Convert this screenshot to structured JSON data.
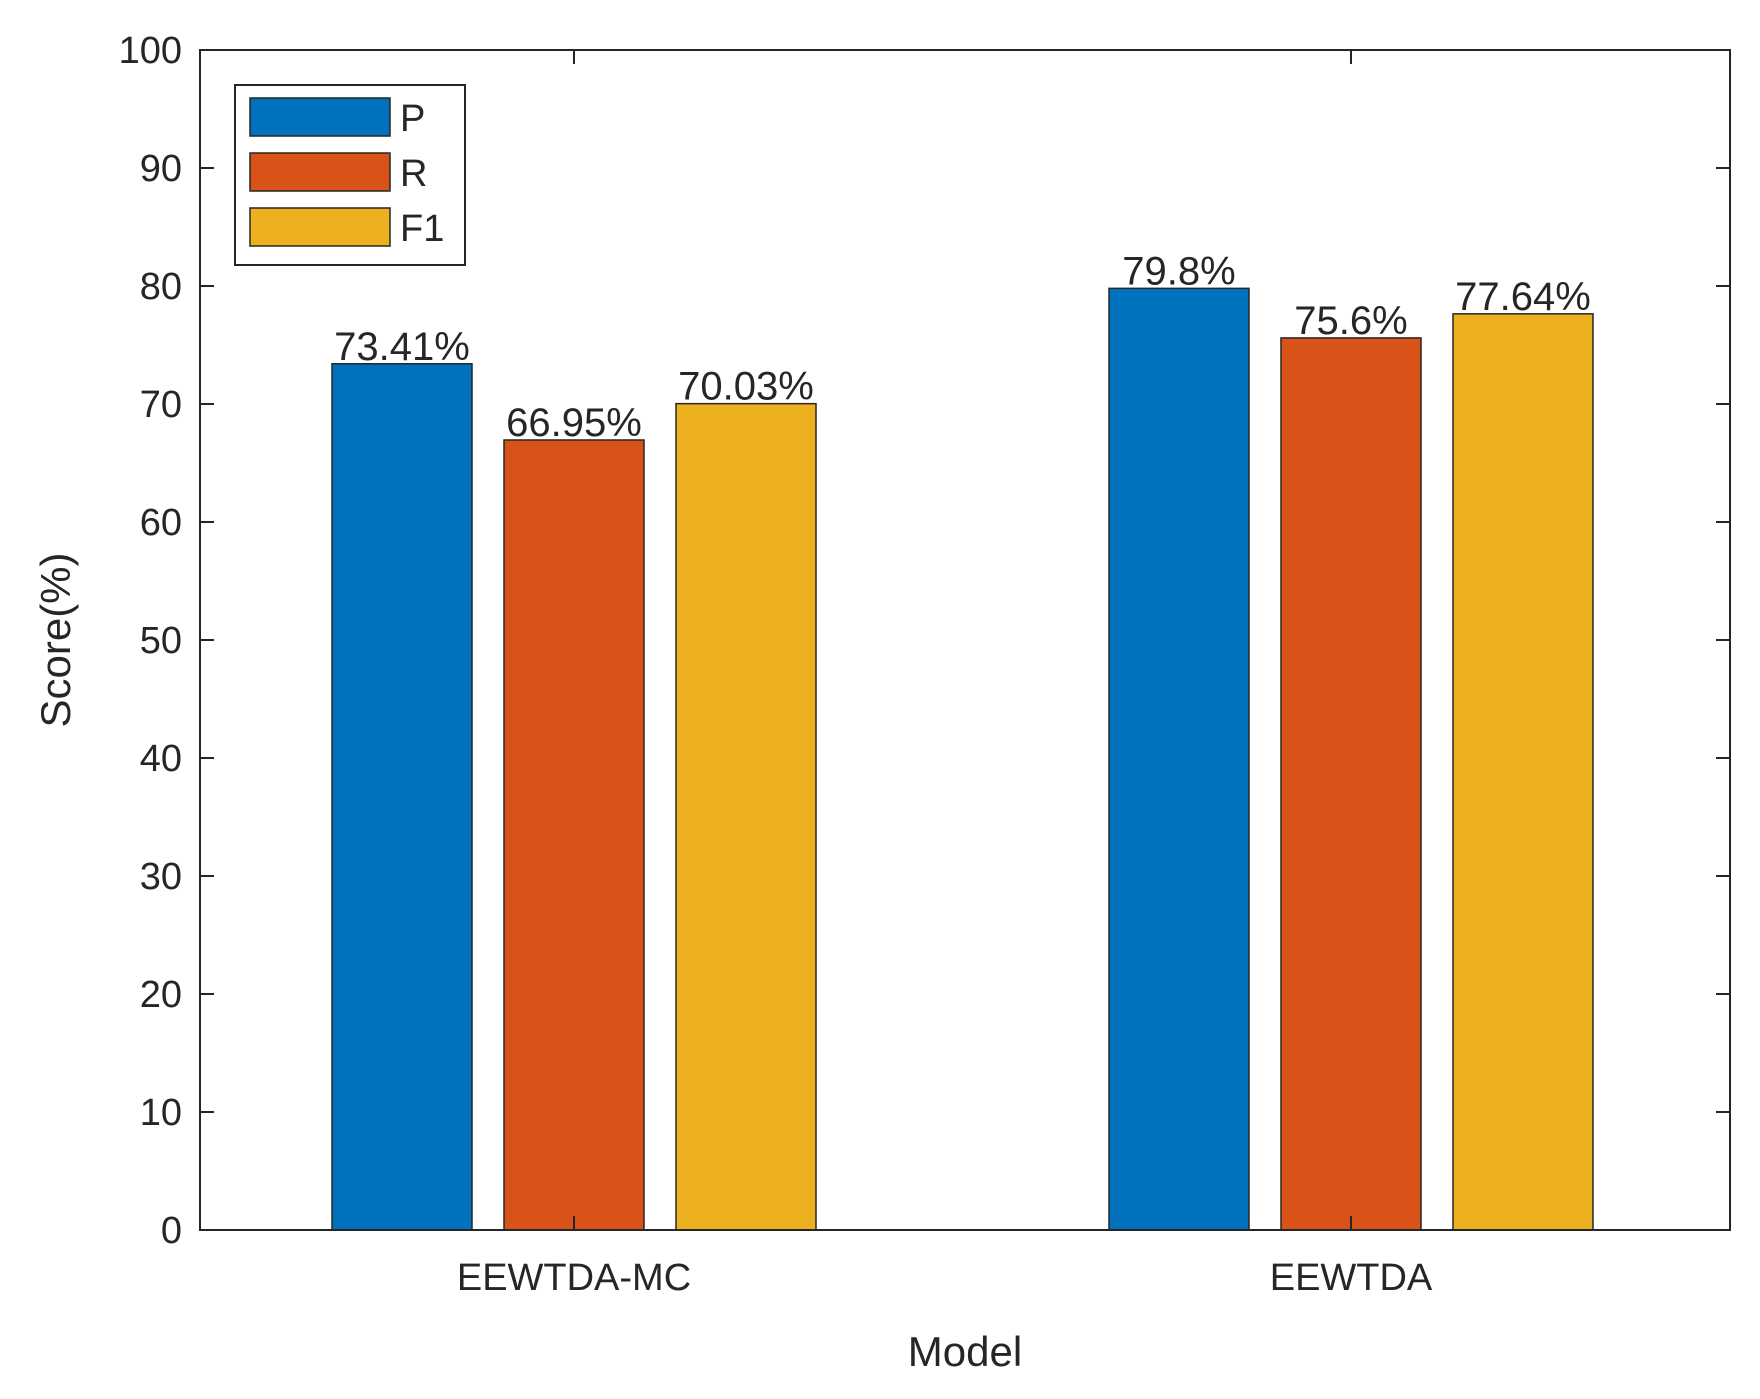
{
  "chart_data": {
    "type": "bar",
    "title": "",
    "xlabel": "Model",
    "ylabel": "Score(%)",
    "ylim": [
      0,
      100
    ],
    "yticks": [
      0,
      10,
      20,
      30,
      40,
      50,
      60,
      70,
      80,
      90,
      100
    ],
    "grid": false,
    "legend_position": "top-left",
    "categories": [
      "EEWTDA-MC",
      "EEWTDA"
    ],
    "series": [
      {
        "name": "P",
        "color": "#0072BD",
        "values": [
          73.41,
          79.8
        ],
        "labels": [
          "73.41%",
          "79.8%"
        ]
      },
      {
        "name": "R",
        "color": "#D95319",
        "values": [
          66.95,
          75.6
        ],
        "labels": [
          "66.95%",
          "75.6%"
        ]
      },
      {
        "name": "F1",
        "color": "#EDB120",
        "values": [
          70.03,
          77.64
        ],
        "labels": [
          "70.03%",
          "77.64%"
        ]
      }
    ]
  }
}
